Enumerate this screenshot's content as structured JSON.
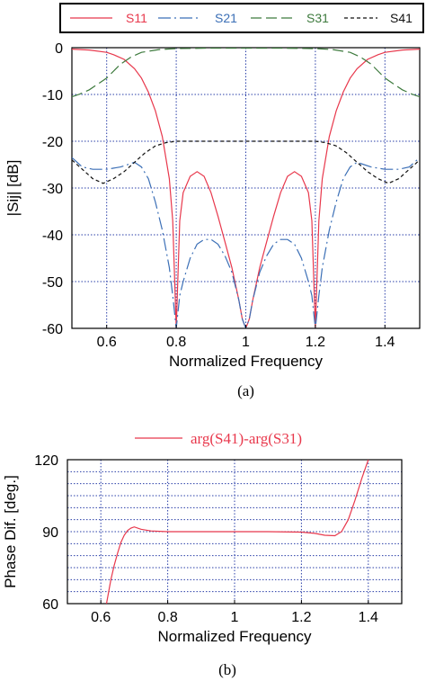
{
  "chart_data": [
    {
      "type": "line",
      "panel_label": "(a)",
      "xlabel": "Normalized Frequency",
      "ylabel": "|Sij| [dB]",
      "xlim": [
        0.5,
        1.5
      ],
      "ylim": [
        -60,
        0
      ],
      "xticks": [
        "0.6",
        "0.8",
        "1",
        "1.2",
        "1.4"
      ],
      "yticks": [
        "0",
        "-10",
        "-20",
        "-30",
        "-40",
        "-50",
        "-60"
      ],
      "grid": true,
      "legend_position": "top",
      "series": [
        {
          "name": "S11",
          "color": "#e8384c",
          "dash": "solid",
          "x": [
            0.5,
            0.55,
            0.6,
            0.62,
            0.65,
            0.68,
            0.7,
            0.72,
            0.74,
            0.76,
            0.78,
            0.79,
            0.8,
            0.81,
            0.82,
            0.84,
            0.86,
            0.88,
            0.9,
            0.92,
            0.94,
            0.96,
            0.98,
            0.99,
            1.0,
            1.01,
            1.02,
            1.04,
            1.06,
            1.08,
            1.1,
            1.12,
            1.14,
            1.16,
            1.18,
            1.19,
            1.2,
            1.21,
            1.22,
            1.24,
            1.26,
            1.28,
            1.3,
            1.32,
            1.35,
            1.38,
            1.4,
            1.45,
            1.5
          ],
          "y": [
            -0.3,
            -0.5,
            -1,
            -1.5,
            -2.5,
            -4.5,
            -6.5,
            -9.5,
            -13.5,
            -19,
            -28,
            -37,
            -60,
            -37,
            -31,
            -27.5,
            -26.5,
            -27.5,
            -31,
            -36,
            -41.5,
            -47,
            -54,
            -58,
            -60,
            -58,
            -54,
            -47,
            -41.5,
            -36,
            -31,
            -27.5,
            -26.5,
            -27.5,
            -31,
            -37,
            -60,
            -37,
            -28,
            -19,
            -13.5,
            -9.5,
            -6.5,
            -4.5,
            -2.5,
            -1.5,
            -1,
            -0.5,
            -0.3
          ]
        },
        {
          "name": "S21",
          "color": "#3b6fb6",
          "dash": "longdash-dot",
          "x": [
            0.5,
            0.53,
            0.56,
            0.6,
            0.64,
            0.68,
            0.7,
            0.72,
            0.74,
            0.76,
            0.78,
            0.79,
            0.8,
            0.81,
            0.82,
            0.84,
            0.86,
            0.88,
            0.9,
            0.92,
            0.94,
            0.96,
            0.98,
            0.99,
            1.0,
            1.01,
            1.02,
            1.04,
            1.06,
            1.08,
            1.1,
            1.12,
            1.14,
            1.16,
            1.18,
            1.19,
            1.2,
            1.21,
            1.22,
            1.24,
            1.26,
            1.28,
            1.3,
            1.32,
            1.36,
            1.4,
            1.44,
            1.47,
            1.5
          ],
          "y": [
            -23.5,
            -25.5,
            -26,
            -26,
            -25.5,
            -24.5,
            -25.5,
            -28,
            -33,
            -39,
            -47,
            -53,
            -60,
            -53,
            -50,
            -45,
            -42,
            -41,
            -41,
            -42,
            -44.5,
            -48,
            -54,
            -58,
            -60,
            -58,
            -54,
            -48,
            -44.5,
            -42,
            -41,
            -41,
            -42,
            -45,
            -50,
            -53,
            -60,
            -53,
            -47,
            -39,
            -33,
            -28,
            -25.5,
            -24.5,
            -25.5,
            -26,
            -26,
            -25.5,
            -23.5
          ]
        },
        {
          "name": "S31",
          "color": "#3d7a3d",
          "dash": "longdash",
          "x": [
            0.5,
            0.52,
            0.55,
            0.58,
            0.6,
            0.62,
            0.64,
            0.67,
            0.7,
            0.75,
            0.8,
            0.9,
            1.0,
            1.1,
            1.2,
            1.25,
            1.3,
            1.33,
            1.36,
            1.38,
            1.4,
            1.42,
            1.45,
            1.48,
            1.5
          ],
          "y": [
            -10.5,
            -10,
            -9,
            -7.5,
            -6.5,
            -5,
            -3.5,
            -2,
            -1,
            -0.4,
            -0.2,
            -0.1,
            -0.1,
            -0.1,
            -0.2,
            -0.4,
            -1,
            -2,
            -3.5,
            -5,
            -6.5,
            -7.5,
            -9,
            -10,
            -10.5
          ]
        },
        {
          "name": "S41",
          "color": "#111111",
          "dash": "dash",
          "x": [
            0.5,
            0.53,
            0.56,
            0.59,
            0.62,
            0.65,
            0.68,
            0.71,
            0.74,
            0.77,
            0.8,
            0.9,
            1.0,
            1.1,
            1.2,
            1.23,
            1.26,
            1.29,
            1.32,
            1.35,
            1.38,
            1.41,
            1.44,
            1.47,
            1.5
          ],
          "y": [
            -24,
            -26,
            -28,
            -29,
            -28,
            -26.5,
            -24.5,
            -22.5,
            -21,
            -20.3,
            -20,
            -20,
            -20,
            -20,
            -20,
            -20.3,
            -21,
            -22.5,
            -24.5,
            -26.5,
            -28,
            -29,
            -28,
            -26,
            -24
          ]
        }
      ]
    },
    {
      "type": "line",
      "panel_label": "(b)",
      "xlabel": "Normalized Frequency",
      "ylabel": "Phase Dif. [deg.]",
      "xlim": [
        0.5,
        1.5
      ],
      "ylim": [
        60,
        120
      ],
      "xticks": [
        "0.6",
        "0.8",
        "1",
        "1.2",
        "1.4"
      ],
      "yticks": [
        "60",
        "90",
        "120"
      ],
      "grid": true,
      "legend_position": "top",
      "series": [
        {
          "name": "arg(S41)-arg(S31)",
          "color": "#e8384c",
          "dash": "solid",
          "x": [
            0.617,
            0.63,
            0.64,
            0.65,
            0.66,
            0.67,
            0.68,
            0.69,
            0.7,
            0.72,
            0.75,
            0.8,
            0.9,
            1.0,
            1.1,
            1.2,
            1.24,
            1.27,
            1.3,
            1.32,
            1.34,
            1.36,
            1.38,
            1.4
          ],
          "y": [
            60,
            70,
            76,
            81,
            85.5,
            88.5,
            90.5,
            91.5,
            92,
            91,
            90.3,
            90,
            90,
            90,
            90,
            89.8,
            89.3,
            88.5,
            88.3,
            90,
            95,
            103,
            112,
            120
          ]
        }
      ]
    }
  ]
}
